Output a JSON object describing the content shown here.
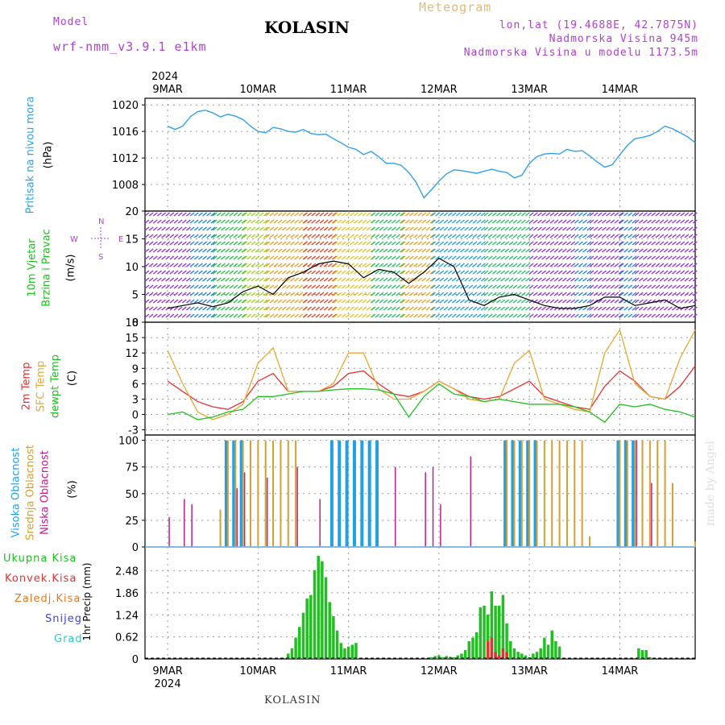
{
  "header": {
    "model_label": "Model",
    "model_name": "wrf-nmm_v3.9.1 e1km",
    "title": "KOLASIN",
    "subtitle": "Meteogram",
    "lonlat": "lon,lat (19.4688E, 42.7875N)",
    "elevation": "Nadmorska Visina 945m",
    "model_elevation": "Nadmorska Visina u modelu 1173.5m"
  },
  "footer": {
    "station": "KOLASIN"
  },
  "credit": "made by Angel",
  "colors": {
    "pressure": "#30a0e8",
    "wind_label": "#20c020",
    "temp2m": "#e83030",
    "sfc_temp": "#e6a830",
    "dewpt": "#20c020",
    "high_cloud": "#20a0e8",
    "mid_cloud": "#d4a030",
    "low_cloud": "#c0208a",
    "total_precip": "#20c020",
    "conv_precip": "#e83030",
    "frozen_precip": "#e87820",
    "snow": "#4040e0",
    "graupel": "#30c8c8",
    "compass": "#b040d0"
  },
  "chart_data": [
    {
      "type": "line",
      "panel": "pressure",
      "ylabel_outer": "Pritisak na nivou mora",
      "ylabel": "(hPa)",
      "x_days": [
        "9MAR",
        "10MAR",
        "11MAR",
        "12MAR",
        "13MAR",
        "14MAR"
      ],
      "x_year": "2024",
      "ylim": [
        1004,
        1021
      ],
      "yticks": [
        1008,
        1012,
        1016,
        1020
      ],
      "x": [
        0,
        2,
        4,
        6,
        8,
        10,
        12,
        14,
        16,
        18,
        20,
        22,
        24,
        26,
        28,
        30,
        32,
        34,
        36,
        38,
        40,
        42,
        44,
        46,
        48,
        50,
        52,
        54,
        56,
        58,
        60,
        62,
        64,
        66,
        68,
        70,
        72,
        74,
        76,
        78,
        80,
        82,
        84,
        86,
        88,
        90,
        92,
        94,
        96,
        98,
        100,
        102,
        104,
        106,
        108,
        110,
        112,
        114,
        116,
        118,
        120,
        122,
        124,
        126,
        128,
        130,
        132,
        134,
        136,
        138,
        140
      ],
      "series": [
        {
          "values": [
            1016.8,
            1016.3,
            1016.8,
            1018.2,
            1019.0,
            1019.2,
            1018.8,
            1018.2,
            1018.6,
            1018.3,
            1017.8,
            1016.8,
            1016.0,
            1015.8,
            1016.6,
            1016.4,
            1016.0,
            1015.9,
            1016.3,
            1015.7,
            1015.5,
            1015.6,
            1014.9,
            1014.3,
            1013.6,
            1013.3,
            1012.5,
            1013.0,
            1012.2,
            1011.2,
            1011.2,
            1010.9,
            1009.8,
            1008.3,
            1006.0,
            1007.2,
            1008.5,
            1009.6,
            1010.2,
            1010.1,
            1009.9,
            1009.7,
            1010.0,
            1010.3,
            1010.0,
            1009.8,
            1009.0,
            1009.4,
            1011.2,
            1012.2,
            1012.6,
            1012.7,
            1012.6,
            1013.3,
            1013.0,
            1013.1,
            1012.3,
            1011.4,
            1010.6,
            1011.0,
            1012.5,
            1013.9,
            1014.9,
            1015.1,
            1015.4,
            1016.0,
            1016.8,
            1016.4,
            1015.8,
            1015.2,
            1014.3
          ]
        }
      ]
    },
    {
      "type": "line",
      "panel": "wind",
      "ylabel_outer": [
        "10m Vjetar",
        "Brzina i Pravac"
      ],
      "ylabel": "(m/s)",
      "compass": {
        "n": "N",
        "s": "S",
        "w": "W",
        "e": "E"
      },
      "ylim": [
        0,
        20
      ],
      "yticks": [
        0,
        5,
        10,
        15,
        20
      ],
      "x": [
        0,
        4,
        8,
        12,
        16,
        20,
        24,
        28,
        32,
        36,
        40,
        44,
        48,
        52,
        56,
        60,
        64,
        68,
        72,
        76,
        80,
        84,
        88,
        92,
        96,
        100,
        104,
        108,
        112,
        116,
        120,
        124,
        128,
        132,
        136,
        140
      ],
      "series": [
        {
          "values": [
            2.5,
            3.0,
            3.5,
            2.8,
            3.5,
            5.5,
            6.5,
            5.0,
            8.0,
            9.0,
            10.5,
            11.0,
            10.5,
            8.0,
            9.5,
            9.0,
            7.0,
            9.0,
            11.5,
            10.0,
            4.0,
            3.0,
            4.5,
            5.0,
            4.0,
            3.0,
            2.5,
            2.5,
            3.0,
            4.5,
            4.5,
            3.0,
            3.5,
            4.0,
            2.5,
            3.0
          ]
        }
      ]
    },
    {
      "type": "line",
      "panel": "temperature",
      "ylabel_outer": [
        "2m Temp",
        "SFC Temp",
        "dewpt Temp"
      ],
      "ylabel": "(C)",
      "ylim": [
        -4,
        18
      ],
      "yticks": [
        -3,
        0,
        3,
        6,
        9,
        12,
        15,
        18
      ],
      "x": [
        0,
        4,
        8,
        12,
        16,
        20,
        24,
        28,
        32,
        36,
        40,
        44,
        48,
        52,
        56,
        60,
        64,
        68,
        72,
        76,
        80,
        84,
        88,
        92,
        96,
        100,
        104,
        108,
        112,
        116,
        120,
        124,
        128,
        132,
        136,
        140
      ],
      "series": [
        {
          "name": "2m Temp",
          "values": [
            6.5,
            4.5,
            2.5,
            1.5,
            1.0,
            2.5,
            6.5,
            8.0,
            4.5,
            4.5,
            4.5,
            5.5,
            8.0,
            8.5,
            6.0,
            4.0,
            3.5,
            4.5,
            6.5,
            5.0,
            3.5,
            3.0,
            3.5,
            5.0,
            6.5,
            3.5,
            2.5,
            1.5,
            1.0,
            5.5,
            8.5,
            6.5,
            3.5,
            3.0,
            5.5,
            9.5
          ]
        },
        {
          "name": "SFC Temp",
          "values": [
            12.5,
            6.0,
            0.5,
            -1.0,
            0.0,
            2.0,
            10.0,
            13.0,
            4.5,
            4.5,
            4.5,
            6.0,
            12.0,
            12.0,
            5.0,
            3.0,
            3.0,
            4.5,
            6.5,
            5.0,
            3.0,
            2.5,
            3.0,
            10.0,
            12.5,
            3.0,
            2.0,
            1.0,
            0.5,
            12.0,
            16.5,
            6.0,
            3.5,
            3.0,
            11.0,
            16.5
          ]
        },
        {
          "name": "dewpt Temp",
          "values": [
            0.0,
            0.5,
            -1.0,
            -0.5,
            0.5,
            1.0,
            3.5,
            3.5,
            4.0,
            4.5,
            4.5,
            4.8,
            5.0,
            5.0,
            4.8,
            4.0,
            -0.5,
            3.5,
            6.0,
            4.0,
            3.5,
            2.5,
            3.0,
            2.5,
            2.0,
            2.0,
            2.0,
            1.5,
            0.5,
            -1.5,
            2.0,
            1.5,
            2.0,
            1.0,
            0.5,
            -0.5
          ]
        }
      ]
    },
    {
      "type": "bar",
      "panel": "clouds",
      "ylabel_outer": [
        "Visoka Oblacnost",
        "Srednja Oblacnost",
        "Niska Oblacnost"
      ],
      "ylabel": "(%)",
      "ylim": [
        0,
        105
      ],
      "yticks": [
        0,
        25,
        50,
        75,
        100
      ],
      "x": [
        0,
        2,
        4,
        6,
        8,
        10,
        12,
        14,
        16,
        18,
        20,
        22,
        24,
        26,
        28,
        30,
        32,
        34,
        36,
        38,
        40,
        42,
        44,
        46,
        48,
        50,
        52,
        54,
        56,
        58,
        60,
        62,
        64,
        66,
        68,
        70,
        72,
        74,
        76,
        78,
        80,
        82,
        84,
        86,
        88,
        90,
        92,
        94,
        96,
        98,
        100,
        102,
        104,
        106,
        108,
        110,
        112,
        114,
        116,
        118,
        120,
        122,
        124,
        126,
        128,
        130,
        132,
        134,
        136,
        138,
        140
      ],
      "series": [
        {
          "name": "Visoka Oblacnost",
          "values": [
            0,
            0,
            0,
            0,
            0,
            0,
            0,
            0,
            100,
            100,
            100,
            0,
            0,
            0,
            0,
            0,
            0,
            0,
            0,
            0,
            0,
            0,
            100,
            100,
            100,
            100,
            100,
            100,
            100,
            0,
            0,
            0,
            0,
            0,
            0,
            0,
            0,
            0,
            0,
            0,
            0,
            0,
            0,
            0,
            0,
            100,
            100,
            100,
            100,
            100,
            0,
            0,
            0,
            0,
            0,
            0,
            0,
            0,
            0,
            0,
            100,
            100,
            100,
            0,
            0,
            0,
            0,
            0,
            0,
            0,
            0
          ]
        },
        {
          "name": "Srednja Oblacnost",
          "values": [
            0,
            0,
            0,
            0,
            0,
            0,
            0,
            35,
            100,
            100,
            100,
            100,
            100,
            100,
            100,
            100,
            100,
            100,
            0,
            0,
            0,
            0,
            0,
            0,
            0,
            0,
            0,
            0,
            0,
            0,
            0,
            0,
            0,
            0,
            0,
            0,
            0,
            0,
            0,
            0,
            0,
            0,
            0,
            0,
            0,
            100,
            100,
            100,
            100,
            100,
            100,
            100,
            100,
            100,
            100,
            100,
            10,
            0,
            0,
            0,
            100,
            100,
            100,
            100,
            100,
            100,
            100,
            60,
            0,
            0,
            5
          ]
        },
        {
          "name": "Niska Oblacnost",
          "values": [
            28,
            0,
            45,
            40,
            0,
            0,
            0,
            0,
            0,
            55,
            70,
            0,
            0,
            65,
            0,
            0,
            0,
            75,
            0,
            0,
            45,
            0,
            0,
            0,
            0,
            0,
            0,
            0,
            0,
            0,
            75,
            0,
            0,
            0,
            70,
            75,
            40,
            0,
            0,
            0,
            85,
            0,
            0,
            0,
            0,
            0,
            0,
            0,
            0,
            0,
            0,
            0,
            0,
            0,
            0,
            0,
            0,
            0,
            0,
            0,
            0,
            0,
            100,
            0,
            60,
            0,
            0,
            0,
            0,
            0,
            0
          ]
        }
      ]
    },
    {
      "type": "bar",
      "panel": "precip",
      "legend": [
        "Ukupna Kisa",
        "Konvek.Kisa",
        "Zaledj.Kisa",
        "Snijeg",
        "Grad"
      ],
      "ylabel": "1hr Precip (mm)",
      "ylim": [
        0,
        3.15
      ],
      "yticks": [
        "0",
        "0.62",
        "1.24",
        "1.86",
        "2.48"
      ],
      "x_days": [
        "9MAR",
        "10MAR",
        "11MAR",
        "12MAR",
        "13MAR",
        "14MAR"
      ],
      "x_year": "2024",
      "x": [
        32,
        33,
        34,
        35,
        36,
        37,
        38,
        39,
        40,
        41,
        42,
        43,
        44,
        45,
        46,
        47,
        48,
        49,
        50,
        70,
        71,
        72,
        73,
        74,
        75,
        76,
        77,
        78,
        79,
        80,
        81,
        82,
        83,
        84,
        85,
        86,
        87,
        88,
        89,
        90,
        91,
        92,
        93,
        94,
        95,
        96,
        97,
        98,
        99,
        100,
        101,
        102,
        103,
        104,
        125,
        126,
        127,
        128
      ],
      "series": [
        {
          "name": "Ukupna Kisa",
          "values": [
            0.15,
            0.3,
            0.6,
            0.9,
            1.3,
            1.7,
            1.8,
            2.5,
            2.9,
            2.75,
            2.3,
            1.6,
            1.2,
            0.8,
            0.45,
            0.3,
            0.35,
            0.4,
            0.45,
            0.05,
            0.08,
            0.1,
            0.05,
            0.08,
            0.06,
            0.05,
            0.1,
            0.15,
            0.25,
            0.5,
            0.6,
            0.75,
            1.45,
            1.5,
            1.25,
            1.9,
            1.5,
            1.5,
            1.8,
            1.0,
            0.5,
            0.3,
            0.2,
            0.15,
            0.1,
            0.05,
            0.15,
            0.2,
            0.3,
            0.6,
            0.4,
            0.8,
            0.5,
            0.35,
            0.3,
            0.25,
            0.25,
            0.05
          ]
        },
        {
          "name": "Konvek.Kisa",
          "values": [
            0,
            0,
            0,
            0,
            0,
            0,
            0,
            0,
            0,
            0,
            0,
            0,
            0,
            0,
            0,
            0,
            0,
            0,
            0,
            0,
            0,
            0,
            0,
            0,
            0,
            0,
            0,
            0,
            0,
            0,
            0,
            0,
            0,
            0,
            0.5,
            0.6,
            0.2,
            0.1,
            0.3,
            0.2,
            0,
            0,
            0,
            0,
            0,
            0,
            0,
            0,
            0,
            0,
            0,
            0,
            0,
            0,
            0,
            0,
            0,
            0
          ]
        }
      ]
    }
  ]
}
